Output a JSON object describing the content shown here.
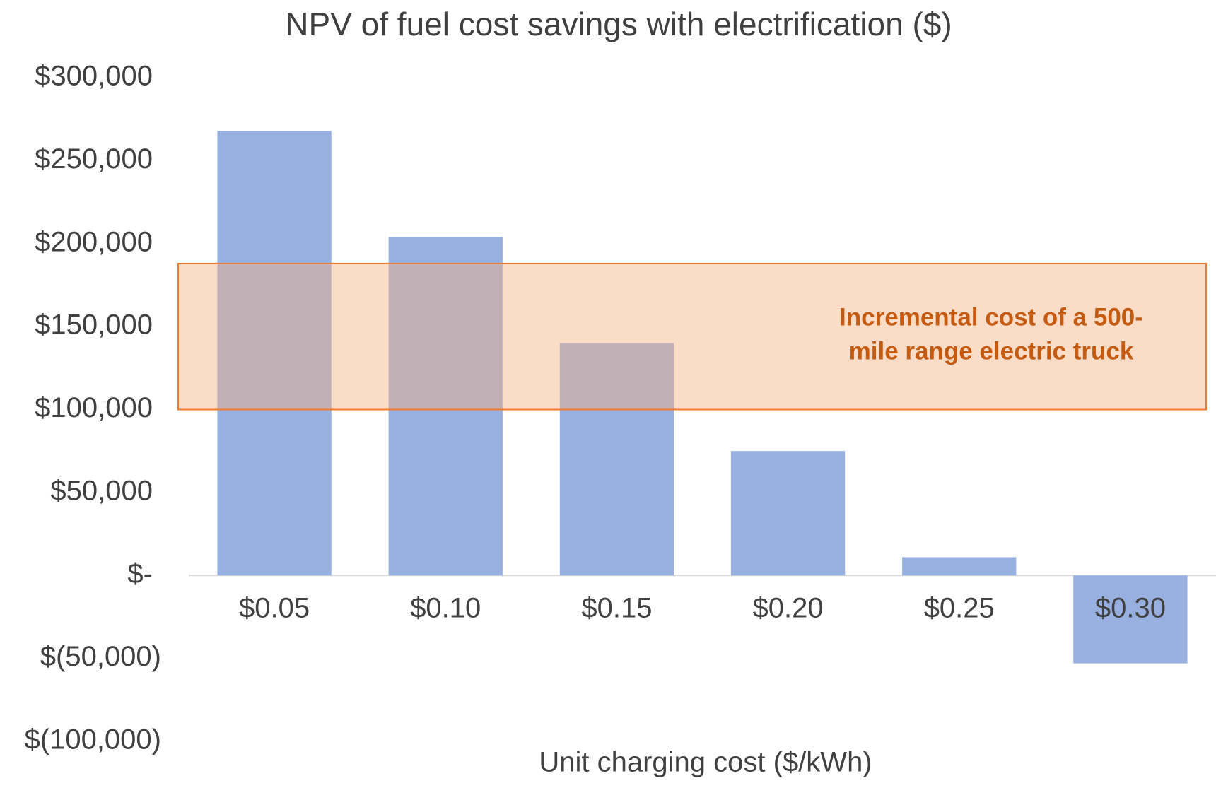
{
  "chart_data": {
    "type": "bar",
    "title": "NPV of fuel cost savings with electrification ($)",
    "x_label": "Unit charging cost ($/kWh)",
    "categories": [
      "$0.05",
      "$0.10",
      "$0.15",
      "$0.20",
      "$0.25",
      "$0.30"
    ],
    "values": [
      268000,
      204000,
      140000,
      75000,
      11000,
      -53000
    ],
    "color": "#97b0df",
    "ylim": [
      -100000,
      300000
    ],
    "yticks": [
      {
        "value": 300000,
        "label": "$300,000"
      },
      {
        "value": 250000,
        "label": "$250,000"
      },
      {
        "value": 200000,
        "label": "$200,000"
      },
      {
        "value": 150000,
        "label": "$150,000"
      },
      {
        "value": 100000,
        "label": "$100,000"
      },
      {
        "value": 50000,
        "label": "$50,000"
      },
      {
        "value": 0,
        "label": "$-"
      },
      {
        "value": -50000,
        "label": "$(50,000)"
      },
      {
        "value": -100000,
        "label": "$(100,000)"
      }
    ],
    "grid": false,
    "band": {
      "from": 100000,
      "to": 188000,
      "color": "#f4b183",
      "edge_color": "#ed7d31",
      "text_color": "#c55a11",
      "label_lines": [
        "Incremental cost of a 500-",
        "mile range electric truck"
      ]
    }
  }
}
